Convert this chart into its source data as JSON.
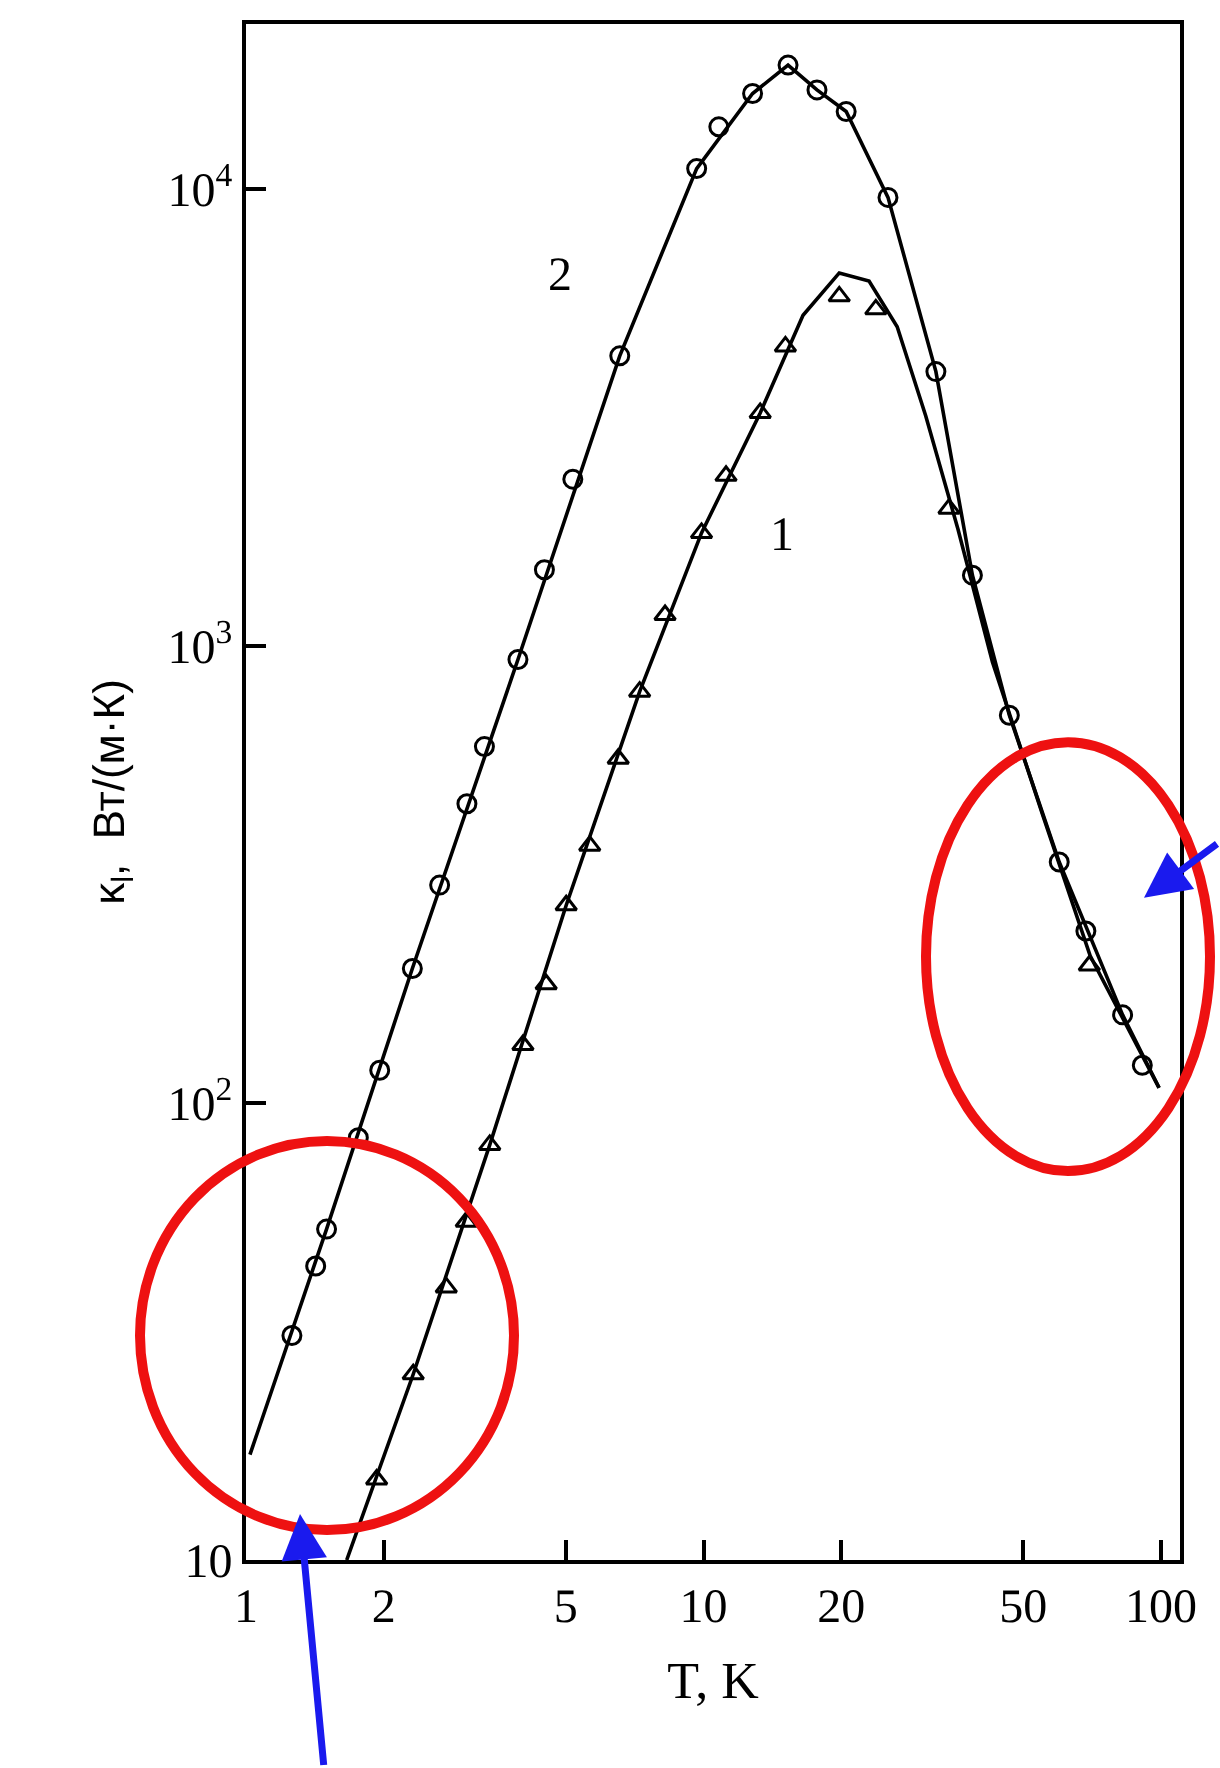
{
  "chart_data": {
    "type": "line",
    "xlabel": "T, K",
    "ylabel": "κ$_{l}$,  Вт/(м·К)",
    "log": "xy",
    "xlim": [
      1,
      110
    ],
    "ylim": [
      10,
      23000
    ],
    "xticks": [
      1,
      2,
      5,
      10,
      20,
      50,
      100
    ],
    "yticks": [
      10,
      {
        "value": 100,
        "label": "10$^{2}$"
      },
      {
        "value": 1000,
        "label": "10$^{3}$"
      },
      {
        "value": 10000,
        "label": "10$^{4}$"
      }
    ],
    "series": [
      {
        "color": "#000000",
        "marker": "none",
        "line_style": "solid",
        "x": [
          1.02,
          1.5,
          2.31,
          3.93,
          6.56,
          9.66,
          12.8,
          15.3,
          17.7,
          20.5,
          25.3,
          32.2,
          38.7,
          46.6,
          59.9,
          82.4,
          99
        ],
        "values": [
          17,
          53,
          197,
          935,
          4320,
          11100,
          16200,
          18700,
          16500,
          14800,
          9600,
          3990,
          1430,
          706,
          337,
          156,
          108
        ]
      },
      {
        "type": "scatter",
        "color": "#000000",
        "marker": "circle",
        "x": [
          1.26,
          1.42,
          1.5,
          1.76,
          1.96,
          2.31,
          2.65,
          3.04,
          3.32,
          3.93,
          4.49,
          5.18,
          6.56,
          9.66,
          10.8,
          12.8,
          15.3,
          17.7,
          20.5,
          25.3,
          32.2,
          38.7,
          46.6,
          59.9,
          68.5,
          82.4,
          91
        ],
        "values": [
          31,
          44,
          53,
          84,
          118,
          197,
          300,
          452,
          603,
          935,
          1470,
          2320,
          4320,
          11100,
          13700,
          16200,
          18700,
          16500,
          14800,
          9600,
          3990,
          1430,
          706,
          337,
          238,
          156,
          121
        ]
      },
      {
        "color": "#000000",
        "marker": "none",
        "line_style": "solid",
        "x": [
          1.66,
          2.32,
          3.41,
          5.01,
          7.25,
          9.9,
          13.3,
          16.5,
          19.8,
          23,
          26.5,
          30.6,
          36,
          42.8,
          55,
          70,
          99
        ],
        "values": [
          10,
          25.5,
          81,
          271,
          795,
          1770,
          3240,
          5300,
          6560,
          6300,
          5000,
          3190,
          1800,
          923,
          430,
          210,
          108
        ]
      },
      {
        "type": "scatter",
        "color": "#000000",
        "marker": "triangle",
        "x": [
          1.93,
          2.32,
          2.74,
          3.03,
          3.41,
          4.03,
          4.53,
          5.01,
          5.64,
          6.51,
          7.25,
          8.24,
          9.9,
          11.2,
          13.3,
          15.1,
          19.8,
          23.8,
          34.4,
          69.7
        ],
        "values": [
          15,
          25.5,
          39.5,
          55,
          81,
          134,
          182,
          271,
          366,
          567,
          795,
          1170,
          1770,
          2360,
          3240,
          4530,
          5830,
          5460,
          2000,
          200
        ]
      }
    ],
    "annotations": [
      {
        "text": "2",
        "x": 6.56,
        "y": 4320
      },
      {
        "text": "1",
        "x": 9.9,
        "y": 1770
      }
    ]
  }
}
